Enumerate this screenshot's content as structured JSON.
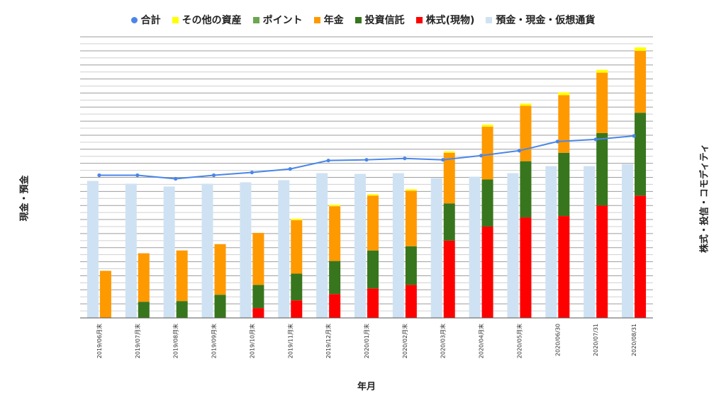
{
  "legend": [
    {
      "label": "合計",
      "color": "#4a86e8",
      "shape": "dot"
    },
    {
      "label": "その他の資産",
      "color": "#ffff00",
      "shape": "square"
    },
    {
      "label": "ポイント",
      "color": "#6aa84f",
      "shape": "square"
    },
    {
      "label": "年金",
      "color": "#ff9900",
      "shape": "square"
    },
    {
      "label": "投資信託",
      "color": "#38761d",
      "shape": "square"
    },
    {
      "label": "株式(現物)",
      "color": "#ff0000",
      "shape": "square"
    },
    {
      "label": "預金・現金・仮想通貨",
      "color": "#cfe2f3",
      "shape": "square"
    }
  ],
  "axes": {
    "xlabel": "年月",
    "ylabel_left": "現金・預金",
    "ylabel_right": "株式・投信・コモディティ"
  },
  "chart_data": {
    "type": "bar",
    "stacked": true,
    "categories": [
      "2019/06月末",
      "2019/07月末",
      "2019/08月末",
      "2019/09月末",
      "2019/10月末",
      "2019/11月末",
      "2019/12月末",
      "2020/01月末",
      "2020/02月末",
      "2020/03月末",
      "2020/04月末",
      "2020/05月末",
      "2020/06/30",
      "2020/07/31",
      "2020/08/31"
    ],
    "left_axis_series": {
      "name": "預金・現金・仮想通貨",
      "color": "#cfe2f3",
      "values": [
        195,
        191,
        187,
        191,
        193,
        196,
        206,
        205,
        206,
        199,
        201,
        206,
        216,
        216,
        219
      ]
    },
    "right_axis_stack": [
      {
        "name": "株式(現物)",
        "color": "#ff0000",
        "values": [
          0,
          0,
          0,
          0,
          14,
          25,
          34,
          42,
          47,
          110,
          130,
          143,
          145,
          160,
          174
        ]
      },
      {
        "name": "投資信託",
        "color": "#38761d",
        "values": [
          0,
          23,
          24,
          33,
          33,
          38,
          47,
          54,
          55,
          53,
          67,
          80,
          90,
          103,
          118
        ]
      },
      {
        "name": "年金",
        "color": "#ff9900",
        "values": [
          67,
          69,
          72,
          72,
          74,
          76,
          78,
          78,
          79,
          72,
          75,
          79,
          82,
          86,
          88
        ]
      },
      {
        "name": "ポイント",
        "color": "#6aa84f",
        "values": [
          0,
          0,
          0,
          0,
          0,
          0,
          0,
          0,
          0,
          0,
          0,
          0,
          0,
          0,
          0
        ]
      },
      {
        "name": "その他の資産",
        "color": "#ffff00",
        "values": [
          0,
          0,
          0,
          0,
          0,
          2,
          2,
          2,
          2,
          2,
          3,
          3,
          4,
          4,
          5
        ]
      }
    ],
    "total_line": {
      "name": "合計",
      "color": "#4a86e8",
      "values": [
        203,
        203,
        198,
        203,
        207,
        212,
        224,
        225,
        227,
        225,
        231,
        238,
        251,
        254,
        259
      ]
    },
    "ylim_left": [
      0,
      400
    ],
    "ylim_right": [
      0,
      400
    ],
    "grid": true,
    "tick_labels_y_visible": false,
    "legend_position": "top"
  }
}
